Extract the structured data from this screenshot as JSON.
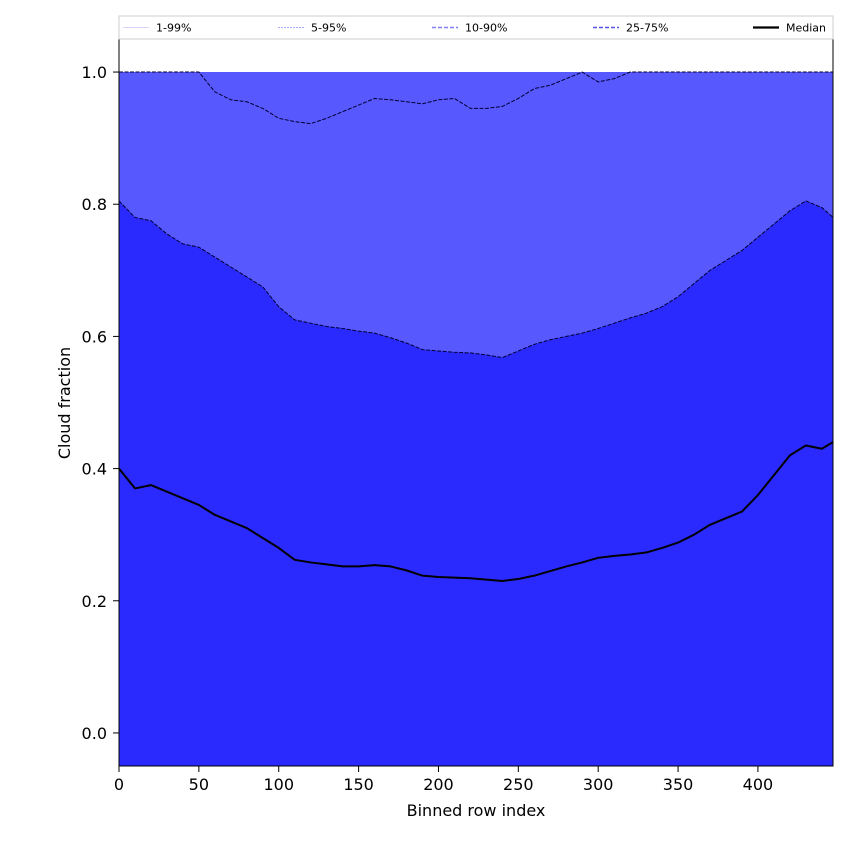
{
  "chart_data": {
    "type": "area",
    "xlabel": "Binned row index",
    "ylabel": "Cloud fraction",
    "xlim": [
      0,
      447
    ],
    "ylim": [
      -0.05,
      1.05
    ],
    "xticks": [
      0,
      50,
      100,
      150,
      200,
      250,
      300,
      350,
      400
    ],
    "yticks": [
      0.0,
      0.2,
      0.4,
      0.6,
      0.8,
      1.0
    ],
    "grid": false,
    "legend_position": "top",
    "x": [
      0,
      10,
      20,
      30,
      40,
      50,
      60,
      70,
      80,
      90,
      100,
      110,
      120,
      130,
      140,
      150,
      160,
      170,
      180,
      190,
      200,
      210,
      220,
      230,
      240,
      250,
      260,
      270,
      280,
      290,
      300,
      310,
      320,
      330,
      340,
      350,
      360,
      370,
      380,
      390,
      400,
      410,
      420,
      430,
      440,
      447
    ],
    "bands": [
      {
        "name": "1-99%",
        "color": "#c8c8ff",
        "lower": [
          0.01,
          0.008,
          0.007,
          0.006,
          0.005,
          0.004,
          0.004,
          0.004,
          0.004,
          0.004,
          0.004,
          0.004,
          0.004,
          0.004,
          0.004,
          0.004,
          0.004,
          0.004,
          0.004,
          0.004,
          0.004,
          0.004,
          0.004,
          0.004,
          0.003,
          0.003,
          0.003,
          0.003,
          0.003,
          0.003,
          0.003,
          0.003,
          0.003,
          0.003,
          0.003,
          0.003,
          0.003,
          0.003,
          0.003,
          0.003,
          0.004,
          0.005,
          0.007,
          0.009,
          0.01,
          0.01
        ],
        "upper": [
          1.0,
          1.0,
          1.0,
          1.0,
          1.0,
          1.0,
          1.0,
          1.0,
          1.0,
          1.0,
          1.0,
          1.0,
          1.0,
          1.0,
          1.0,
          1.0,
          1.0,
          1.0,
          1.0,
          1.0,
          1.0,
          1.0,
          1.0,
          1.0,
          1.0,
          1.0,
          1.0,
          1.0,
          1.0,
          1.0,
          1.0,
          1.0,
          1.0,
          1.0,
          1.0,
          1.0,
          1.0,
          1.0,
          1.0,
          1.0,
          1.0,
          1.0,
          1.0,
          1.0,
          1.0,
          1.0
        ]
      },
      {
        "name": "5-95%",
        "color": "#9090ff",
        "lower": [
          0.04,
          0.035,
          0.032,
          0.028,
          0.026,
          0.025,
          0.025,
          0.026,
          0.027,
          0.028,
          0.028,
          0.028,
          0.028,
          0.028,
          0.029,
          0.03,
          0.03,
          0.03,
          0.029,
          0.028,
          0.028,
          0.028,
          0.028,
          0.026,
          0.025,
          0.023,
          0.022,
          0.021,
          0.02,
          0.019,
          0.019,
          0.018,
          0.018,
          0.018,
          0.018,
          0.018,
          0.018,
          0.018,
          0.019,
          0.02,
          0.024,
          0.03,
          0.036,
          0.04,
          0.045,
          0.048
        ],
        "upper": [
          1.0,
          1.0,
          1.0,
          1.0,
          1.0,
          1.0,
          0.97,
          0.958,
          0.955,
          0.945,
          0.93,
          0.925,
          0.922,
          0.93,
          0.94,
          0.95,
          0.96,
          0.958,
          0.955,
          0.952,
          0.958,
          0.96,
          0.945,
          0.945,
          0.948,
          0.96,
          0.975,
          0.98,
          0.99,
          1.0,
          0.985,
          0.99,
          1.0,
          1.0,
          1.0,
          1.0,
          1.0,
          1.0,
          1.0,
          1.0,
          1.0,
          1.0,
          1.0,
          1.0,
          1.0,
          1.0
        ]
      },
      {
        "name": "10-90%",
        "color": "#5858ff",
        "lower": [
          0.12,
          0.105,
          0.1,
          0.098,
          0.092,
          0.088,
          0.082,
          0.078,
          0.075,
          0.073,
          0.074,
          0.078,
          0.085,
          0.088,
          0.09,
          0.09,
          0.09,
          0.09,
          0.088,
          0.087,
          0.086,
          0.083,
          0.078,
          0.072,
          0.064,
          0.062,
          0.063,
          0.065,
          0.066,
          0.066,
          0.066,
          0.066,
          0.065,
          0.065,
          0.066,
          0.068,
          0.07,
          0.073,
          0.077,
          0.082,
          0.09,
          0.108,
          0.12,
          0.125,
          0.13,
          0.135
        ],
        "upper": [
          1.0,
          1.0,
          1.0,
          1.0,
          1.0,
          1.0,
          1.0,
          1.0,
          1.0,
          1.0,
          1.0,
          1.0,
          1.0,
          1.0,
          1.0,
          1.0,
          1.0,
          1.0,
          1.0,
          1.0,
          1.0,
          1.0,
          1.0,
          1.0,
          1.0,
          1.0,
          1.0,
          1.0,
          1.0,
          1.0,
          1.0,
          1.0,
          1.0,
          1.0,
          1.0,
          1.0,
          1.0,
          1.0,
          1.0,
          1.0,
          1.0,
          1.0,
          1.0,
          1.0,
          1.0,
          1.0
        ]
      },
      {
        "name": "25-75%",
        "color": "#2a2aff",
        "lower": [
          -0.05,
          -0.05,
          -0.05,
          -0.05,
          -0.05,
          -0.05,
          -0.05,
          -0.05,
          -0.05,
          -0.05,
          -0.05,
          -0.05,
          -0.05,
          -0.05,
          -0.05,
          -0.05,
          -0.05,
          -0.05,
          -0.05,
          -0.05,
          -0.05,
          -0.05,
          -0.05,
          -0.05,
          -0.05,
          -0.05,
          -0.05,
          -0.05,
          -0.05,
          -0.05,
          -0.05,
          -0.05,
          -0.05,
          -0.05,
          -0.05,
          -0.05,
          -0.05,
          -0.05,
          -0.05,
          -0.05,
          -0.05,
          -0.05,
          -0.05,
          -0.05,
          -0.05,
          -0.05
        ],
        "upper": [
          0.805,
          0.78,
          0.775,
          0.755,
          0.74,
          0.735,
          0.72,
          0.705,
          0.69,
          0.675,
          0.645,
          0.625,
          0.62,
          0.615,
          0.612,
          0.608,
          0.605,
          0.598,
          0.59,
          0.58,
          0.578,
          0.576,
          0.575,
          0.572,
          0.568,
          0.578,
          0.588,
          0.595,
          0.6,
          0.605,
          0.612,
          0.62,
          0.628,
          0.635,
          0.645,
          0.66,
          0.68,
          0.7,
          0.715,
          0.73,
          0.75,
          0.77,
          0.79,
          0.805,
          0.795,
          0.78
        ]
      }
    ],
    "series": [
      {
        "name": "Median",
        "color": "#000000",
        "values": [
          0.4,
          0.37,
          0.375,
          0.365,
          0.355,
          0.345,
          0.33,
          0.32,
          0.31,
          0.295,
          0.28,
          0.262,
          0.258,
          0.255,
          0.252,
          0.252,
          0.254,
          0.252,
          0.246,
          0.238,
          0.236,
          0.235,
          0.234,
          0.232,
          0.23,
          0.233,
          0.238,
          0.245,
          0.252,
          0.258,
          0.265,
          0.268,
          0.27,
          0.273,
          0.28,
          0.288,
          0.3,
          0.315,
          0.325,
          0.335,
          0.36,
          0.39,
          0.42,
          0.435,
          0.43,
          0.44
        ]
      }
    ],
    "legend": [
      {
        "label": "1-99%",
        "style": "solid-thin",
        "color": "#c8c8ff"
      },
      {
        "label": "5-95%",
        "style": "dash-thin",
        "color": "#9090ff"
      },
      {
        "label": "10-90%",
        "style": "dash",
        "color": "#8080ff"
      },
      {
        "label": "25-75%",
        "style": "dash",
        "color": "#5555ee"
      },
      {
        "label": "Median",
        "style": "solid-thick",
        "color": "#000000"
      }
    ]
  }
}
